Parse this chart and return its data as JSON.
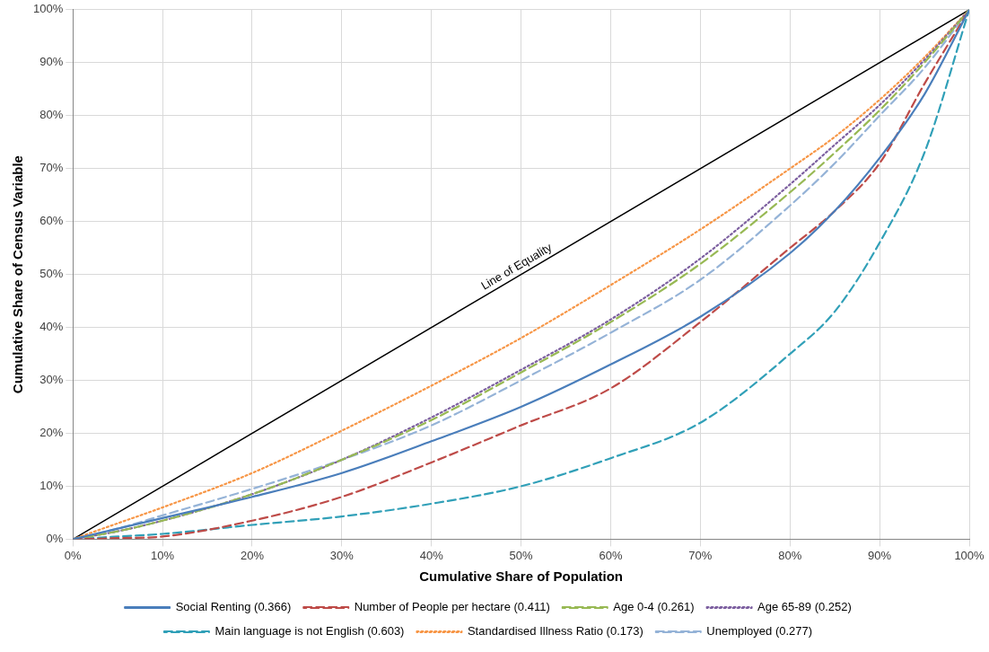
{
  "chart_data": {
    "type": "line",
    "xlabel": "Cumulative Share of Population",
    "ylabel": "Cumulative Share of Census Variable",
    "x": [
      0,
      5,
      10,
      20,
      30,
      40,
      50,
      60,
      70,
      80,
      85,
      90,
      95,
      100
    ],
    "series": [
      {
        "name": "Social Renting (0.366)",
        "color": "#4a7ebb",
        "line_style": "solid",
        "values": [
          0,
          2,
          4,
          8,
          12.5,
          18.5,
          25,
          33,
          42,
          54,
          62,
          72,
          84,
          100
        ]
      },
      {
        "name": "Number of People per hectare (0.411)",
        "color": "#be4b48",
        "line_style": "dashed",
        "values": [
          0,
          0.2,
          0.5,
          3.5,
          8,
          14.5,
          21.5,
          28.5,
          41,
          55,
          62,
          71,
          86,
          100
        ]
      },
      {
        "name": "Age 0-4 (0.261)",
        "color": "#98b954",
        "line_style": "dashed",
        "values": [
          0,
          1.5,
          3.5,
          8.5,
          15,
          22.5,
          31.5,
          41,
          52,
          65.5,
          73,
          81,
          90,
          100
        ]
      },
      {
        "name": "Age 65-89 (0.252)",
        "color": "#7d60a0",
        "line_style": "dotted",
        "values": [
          0,
          1.5,
          3.5,
          8.5,
          15,
          23,
          32,
          41.5,
          53,
          67,
          74.5,
          82,
          90.5,
          100
        ]
      },
      {
        "name": "Main language is not English (0.603)",
        "color": "#31a0b8",
        "line_style": "dashed",
        "values": [
          0,
          0.5,
          1,
          2.7,
          4.3,
          6.7,
          10,
          15.3,
          22,
          35,
          43,
          56,
          73,
          100
        ]
      },
      {
        "name": "Standardised Illness Ratio (0.173)",
        "color": "#f79646",
        "line_style": "dotted",
        "values": [
          0,
          3,
          6,
          12.5,
          20.5,
          29,
          38,
          48,
          58.5,
          70,
          76,
          83,
          91,
          100
        ]
      },
      {
        "name": "Unemployed (0.277)",
        "color": "#95b3d7",
        "line_style": "dashed",
        "values": [
          0,
          2,
          4.5,
          9.5,
          15,
          21.5,
          30,
          39,
          49,
          63,
          71,
          80,
          89,
          100
        ]
      },
      {
        "color": "#000000",
        "line_style": "solid",
        "x": [
          0,
          100
        ],
        "values": [
          0,
          100
        ]
      }
    ],
    "annotations": [
      {
        "text": "Line of Equality",
        "x": 50,
        "y": 50
      }
    ],
    "xlim": [
      0,
      100
    ],
    "ylim": [
      0,
      100
    ],
    "xticks": [
      {
        "value": 0,
        "label": "0%"
      },
      {
        "value": 10,
        "label": "10%"
      },
      {
        "value": 20,
        "label": "20%"
      },
      {
        "value": 30,
        "label": "30%"
      },
      {
        "value": 40,
        "label": "40%"
      },
      {
        "value": 50,
        "label": "50%"
      },
      {
        "value": 60,
        "label": "60%"
      },
      {
        "value": 70,
        "label": "70%"
      },
      {
        "value": 80,
        "label": "80%"
      },
      {
        "value": 90,
        "label": "90%"
      },
      {
        "value": 100,
        "label": "100%"
      }
    ],
    "yticks": [
      {
        "value": 0,
        "label": "0%"
      },
      {
        "value": 10,
        "label": "10%"
      },
      {
        "value": 20,
        "label": "20%"
      },
      {
        "value": 30,
        "label": "30%"
      },
      {
        "value": 40,
        "label": "40%"
      },
      {
        "value": 50,
        "label": "50%"
      },
      {
        "value": 60,
        "label": "60%"
      },
      {
        "value": 70,
        "label": "70%"
      },
      {
        "value": 80,
        "label": "80%"
      },
      {
        "value": 90,
        "label": "90%"
      },
      {
        "value": 100,
        "label": "100%"
      }
    ],
    "grid": true,
    "legend": "bottom",
    "marker": "none"
  }
}
